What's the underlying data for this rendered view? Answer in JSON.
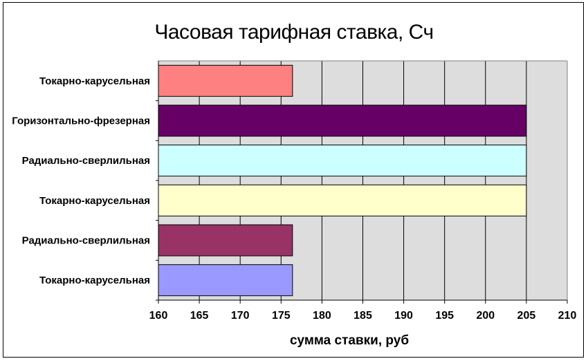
{
  "chart_data": {
    "type": "bar",
    "orientation": "horizontal",
    "title": "Часовая тарифная ставка, Сч",
    "xlabel": "сумма ставки, руб",
    "ylabel": "",
    "xlim": [
      160,
      210
    ],
    "xticks": [
      160,
      165,
      170,
      175,
      180,
      185,
      190,
      195,
      200,
      205,
      210
    ],
    "grid": true,
    "legend": "none",
    "categories": [
      "Токарно-карусельная",
      "Горизонтально-фрезерная",
      "Радиально-сверлильная",
      "Токарно-карусельная",
      "Радиально-сверлильная",
      "Токарно-карусельная"
    ],
    "values": [
      176.4,
      205,
      205,
      205,
      176.4,
      176.4
    ],
    "colors": [
      "#ff8080",
      "#660066",
      "#ccffff",
      "#ffffcc",
      "#993366",
      "#9999ff"
    ],
    "plot_background": "#dddddd"
  }
}
